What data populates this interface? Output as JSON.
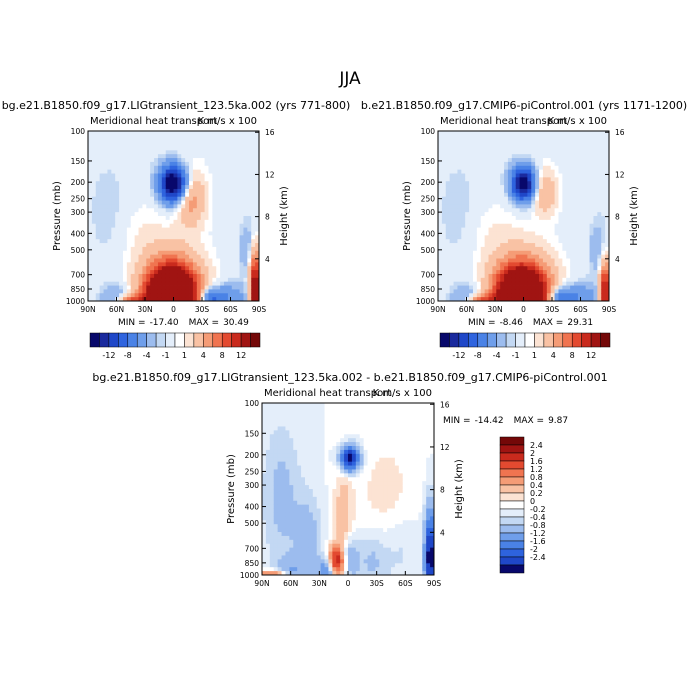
{
  "season": "JJA",
  "chart_data": [
    {
      "type": "heatmap",
      "title": "bg.e21.B1850.f09_g17.LIGtransient_123.5ka.002 (yrs 771-800)",
      "subtitle": "Meridional heat transport",
      "units": "K m/s x 100",
      "ylabel": "Pressure (mb)",
      "y2label": "Height (km)",
      "xticks": [
        "90N",
        "60N",
        "30N",
        "0",
        "30S",
        "60S",
        "90S"
      ],
      "yticks": [
        "100",
        "150",
        "200",
        "250",
        "300",
        "400",
        "500",
        "700",
        "850",
        "1000"
      ],
      "y2ticks": [
        "16",
        "12",
        "8",
        "4"
      ],
      "min_label": "MIN =",
      "min": "-17.40",
      "max_label": "MAX =",
      "max": "30.49",
      "colorbar": {
        "orientation": "horizontal",
        "labels": [
          "-12",
          "-8",
          "-4",
          "-1",
          "1",
          "4",
          "8",
          "12"
        ],
        "colors": [
          "#08086b",
          "#1a2a9e",
          "#1f47c8",
          "#2e63de",
          "#4a82e6",
          "#6f9eea",
          "#9cbcee",
          "#c3d8f3",
          "#e4eefa",
          "#ffffff",
          "#fce3d3",
          "#f9c2a4",
          "#f59c76",
          "#f07450",
          "#e34a30",
          "#c92a1d",
          "#a01412",
          "#740808"
        ]
      }
    },
    {
      "type": "heatmap",
      "title": "b.e21.B1850.f09_g17.CMIP6-piControl.001 (yrs 1171-1200)",
      "subtitle": "Meridional heat transport",
      "units": "K m/s x 100",
      "ylabel": "Pressure (mb)",
      "y2label": "Height (km)",
      "xticks": [
        "90N",
        "60N",
        "30N",
        "0",
        "30S",
        "60S",
        "90S"
      ],
      "yticks": [
        "100",
        "150",
        "200",
        "250",
        "300",
        "400",
        "500",
        "700",
        "850",
        "1000"
      ],
      "y2ticks": [
        "16",
        "12",
        "8",
        "4"
      ],
      "min_label": "MIN =",
      "min": "-8.46",
      "max_label": "MAX =",
      "max": "29.31",
      "colorbar": {
        "orientation": "horizontal",
        "labels": [
          "-12",
          "-8",
          "-4",
          "-1",
          "1",
          "4",
          "8",
          "12"
        ],
        "colors": [
          "#08086b",
          "#1a2a9e",
          "#1f47c8",
          "#2e63de",
          "#4a82e6",
          "#6f9eea",
          "#9cbcee",
          "#c3d8f3",
          "#e4eefa",
          "#ffffff",
          "#fce3d3",
          "#f9c2a4",
          "#f59c76",
          "#f07450",
          "#e34a30",
          "#c92a1d",
          "#a01412",
          "#740808"
        ]
      }
    },
    {
      "type": "heatmap",
      "title": "bg.e21.B1850.f09_g17.LIGtransient_123.5ka.002 - b.e21.B1850.f09_g17.CMIP6-piControl.001",
      "subtitle": "Meridional heat transport",
      "units": "K m/s x 100",
      "ylabel": "Pressure (mb)",
      "y2label": "Height (km)",
      "xticks": [
        "90N",
        "60N",
        "30N",
        "0",
        "30S",
        "60S",
        "90S"
      ],
      "yticks": [
        "100",
        "150",
        "200",
        "250",
        "300",
        "400",
        "500",
        "700",
        "850",
        "1000"
      ],
      "y2ticks": [
        "16",
        "12",
        "8",
        "4"
      ],
      "min_label": "MIN =",
      "min": "-14.42",
      "max_label": "MAX =",
      "max": "9.87",
      "colorbar": {
        "orientation": "vertical",
        "labels": [
          "2.4",
          "2",
          "1.6",
          "1.2",
          "0.8",
          "0.4",
          "0.2",
          "0",
          "-0.2",
          "-0.4",
          "-0.8",
          "-1.2",
          "-1.6",
          "-2",
          "-2.4"
        ],
        "colors": [
          "#740808",
          "#a01412",
          "#c92a1d",
          "#e34a30",
          "#f07450",
          "#f59c76",
          "#f9c2a4",
          "#fce3d3",
          "#ffffff",
          "#e4eefa",
          "#c3d8f3",
          "#9cbcee",
          "#6f9eea",
          "#4a82e6",
          "#2e63de",
          "#1f47c8",
          "#08086b"
        ]
      }
    }
  ]
}
